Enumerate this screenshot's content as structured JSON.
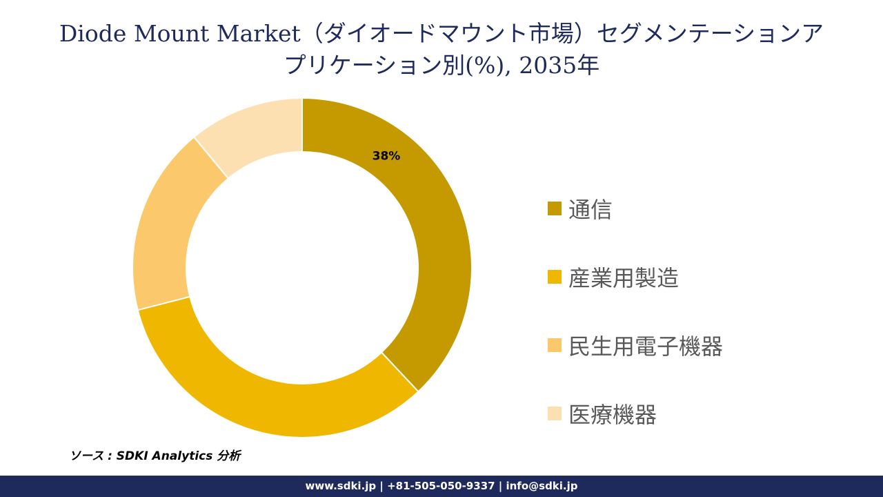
{
  "header": {
    "title_line1": "Diode Mount Market（ダイオードマウント市場）セグメンテーションア",
    "title_line2": "プリケーション別(%), 2035年"
  },
  "chart_data": {
    "type": "donut",
    "title": "Diode Mount Market（ダイオードマウント市場）セグメンテーションアプリケーション別(%), 2035年",
    "categories": [
      "通信",
      "産業用製造",
      "民生用電子機器",
      "医療機器"
    ],
    "values": [
      38,
      33,
      18,
      11
    ],
    "data_labels": [
      "38%",
      "",
      "",
      ""
    ],
    "colors": [
      "#c49a00",
      "#efb700",
      "#fbc96b",
      "#fde0b1"
    ],
    "legend_position": "right"
  },
  "legend": {
    "items": [
      {
        "label": "通信",
        "color": "#c49a00"
      },
      {
        "label": "産業用製造",
        "color": "#efb700"
      },
      {
        "label": "民生用電子機器",
        "color": "#fbc96b"
      },
      {
        "label": "医療機器",
        "color": "#fde0b1"
      }
    ]
  },
  "source": {
    "text": "ソース : SDKI Analytics 分析"
  },
  "footer": {
    "text": "www.sdki.jp | +81-505-050-9337 | info@sdki.jp"
  }
}
